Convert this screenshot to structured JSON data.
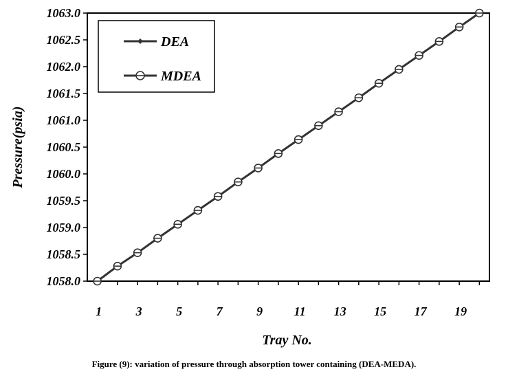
{
  "chart_data": {
    "type": "line",
    "x": [
      1,
      2,
      3,
      4,
      5,
      6,
      7,
      8,
      9,
      10,
      11,
      12,
      13,
      14,
      15,
      16,
      17,
      18,
      19,
      20
    ],
    "series": [
      {
        "name": "DEA",
        "marker": "diamond",
        "values": [
          1058.0,
          1058.28,
          1058.53,
          1058.8,
          1059.06,
          1059.32,
          1059.58,
          1059.85,
          1060.11,
          1060.38,
          1060.64,
          1060.9,
          1061.16,
          1061.42,
          1061.69,
          1061.95,
          1062.21,
          1062.47,
          1062.74,
          1063.0
        ]
      },
      {
        "name": "MDEA",
        "marker": "circle",
        "values": [
          1058.0,
          1058.28,
          1058.53,
          1058.8,
          1059.06,
          1059.32,
          1059.58,
          1059.85,
          1060.11,
          1060.38,
          1060.64,
          1060.9,
          1061.16,
          1061.42,
          1061.69,
          1061.95,
          1062.21,
          1062.47,
          1062.74,
          1063.0
        ]
      }
    ],
    "xlabel": "Tray No.",
    "ylabel": "Pressure(psia)",
    "xlim": [
      0.5,
      20.5
    ],
    "ylim": [
      1058.0,
      1063.0
    ],
    "x_ticks": [
      1,
      3,
      5,
      7,
      9,
      11,
      13,
      15,
      17,
      19
    ],
    "y_ticks": [
      "1058.0",
      "1058.5",
      "1059.0",
      "1059.5",
      "1060.0",
      "1060.5",
      "1061.0",
      "1061.5",
      "1062.0",
      "1062.5",
      "1063.0"
    ],
    "grid": false,
    "legend_position": "top-left",
    "line_color": "#333333"
  },
  "caption": "Figure (9): variation of pressure through absorption tower containing (DEA-MEDA)."
}
